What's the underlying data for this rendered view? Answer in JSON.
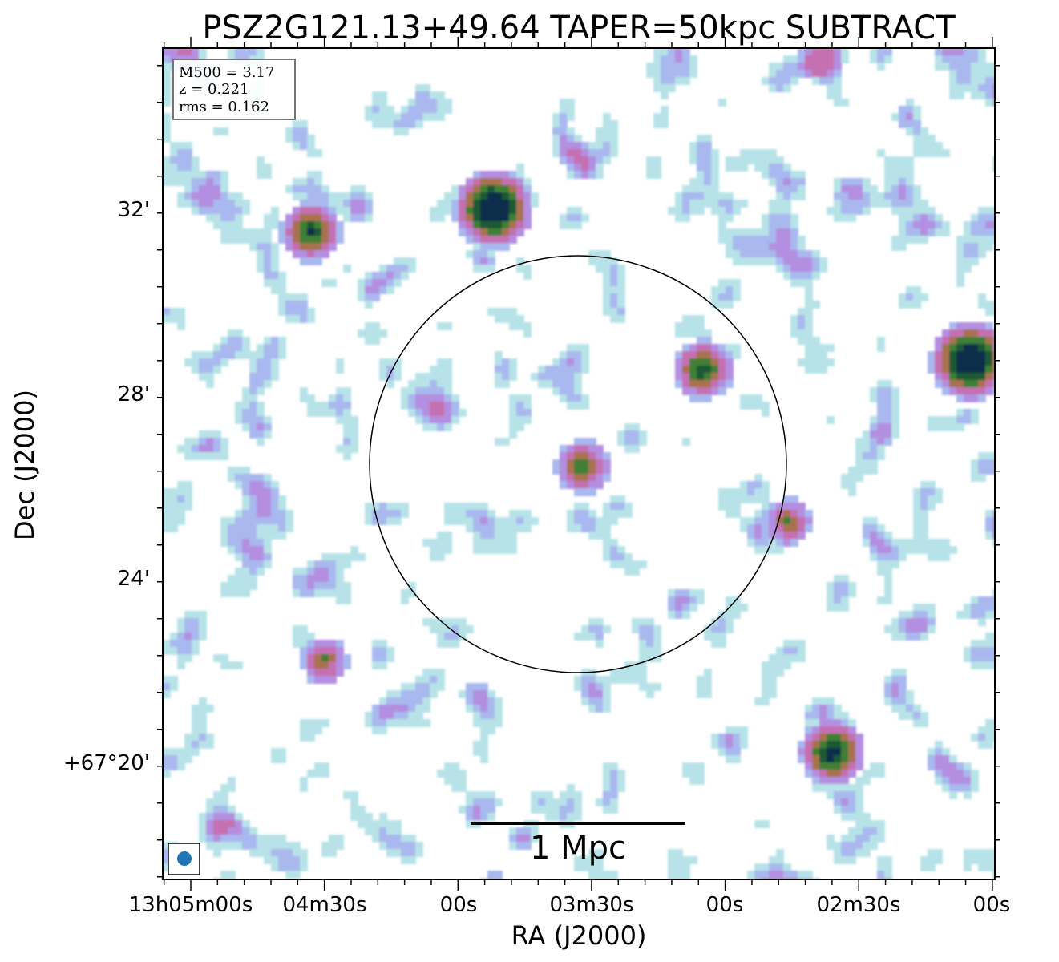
{
  "chart_data": {
    "type": "heatmap",
    "title": "PSZ2G121.13+49.64 TAPER=50kpc SUBTRACT",
    "xlabel": "RA (J2000)",
    "ylabel": "Dec (J2000)",
    "x_ticks": [
      "13h05m00s",
      "04m30s",
      "00s",
      "03m30s",
      "00s",
      "02m30s",
      "00s"
    ],
    "y_ticks": [
      "+67°20'",
      "24'",
      "28'",
      "32'"
    ],
    "info_box": [
      "M500 = 3.17",
      "z = 0.221",
      "rms = 0.162"
    ],
    "scale_bar_label": "1 Mpc",
    "colormap": [
      "#ffffff",
      "#b7e3e8",
      "#a9b8ee",
      "#b48ee0",
      "#c56fb0",
      "#a8724f",
      "#3f7f34",
      "#1d5a34",
      "#0f2e4c"
    ],
    "circle_color": "#000000",
    "beam_color": "#1f77b4",
    "bright_sources": [
      {
        "ra_s_offset": 68,
        "dec_arcmin": 32.0,
        "peak": 9
      },
      {
        "ra_s_offset": 27,
        "dec_arcmin": 31.5,
        "peak": 6
      },
      {
        "ra_s_offset": 175,
        "dec_arcmin": 28.7,
        "peak": 9
      },
      {
        "ra_s_offset": 115,
        "dec_arcmin": 28.5,
        "peak": 6
      },
      {
        "ra_s_offset": 88,
        "dec_arcmin": 26.4,
        "peak": 5
      },
      {
        "ra_s_offset": 134,
        "dec_arcmin": 25.2,
        "peak": 4
      },
      {
        "ra_s_offset": 144,
        "dec_arcmin": 20.2,
        "peak": 7
      },
      {
        "ra_s_offset": 30,
        "dec_arcmin": 22.2,
        "peak": 4
      }
    ]
  }
}
